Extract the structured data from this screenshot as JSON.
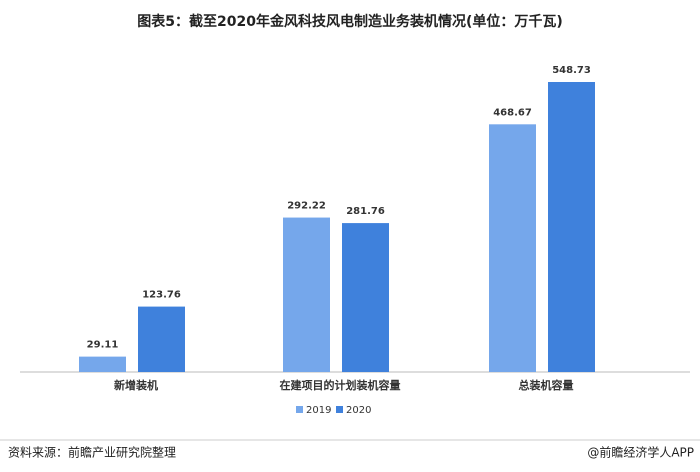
{
  "chart_data": {
    "type": "bar",
    "title": "图表5：截至2020年金风科技风电制造业务装机情况(单位：万千瓦)",
    "categories": [
      "新增装机",
      "在建项目的计划装机容量",
      "总装机容量"
    ],
    "series": [
      {
        "name": "2019",
        "color": "#75a7eb",
        "values": [
          29.11,
          292.22,
          468.67
        ]
      },
      {
        "name": "2020",
        "color": "#3f81dc",
        "values": [
          123.76,
          281.76,
          548.73
        ]
      }
    ],
    "legend": "bottom",
    "source": "资料来源：前瞻产业研究院整理",
    "brand": "@前瞻经济学人APP"
  }
}
